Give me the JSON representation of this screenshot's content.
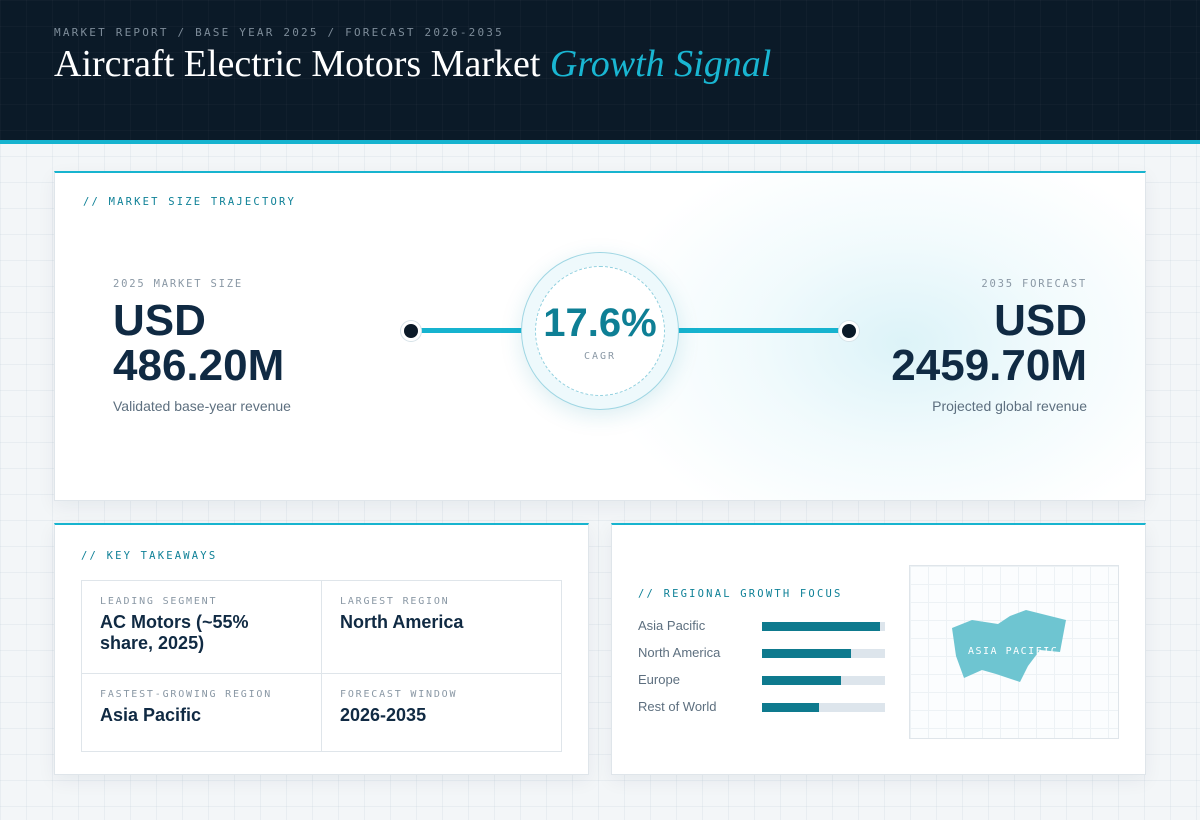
{
  "header": {
    "breadcrumb": "MARKET REPORT / BASE YEAR 2025 / FORECAST 2026-2035",
    "title_main": "Aircraft Electric Motors Market",
    "title_accent": "Growth Signal"
  },
  "trajectory": {
    "section_label": "// MARKET SIZE TRAJECTORY",
    "start": {
      "label": "2025 MARKET SIZE",
      "currency": "USD",
      "value": "486.20M",
      "caption": "Validated base-year revenue"
    },
    "end": {
      "label": "2035 FORECAST",
      "currency": "USD",
      "value": "2459.70M",
      "caption": "Projected global revenue"
    },
    "cagr": {
      "value": "17.6%",
      "label": "CAGR"
    }
  },
  "takeaways": {
    "section_label": "// KEY TAKEAWAYS",
    "items": [
      {
        "label": "LEADING SEGMENT",
        "value": "AC Motors (~55% share, 2025)"
      },
      {
        "label": "LARGEST REGION",
        "value": "North America"
      },
      {
        "label": "FASTEST-GROWING REGION",
        "value": "Asia Pacific"
      },
      {
        "label": "FORECAST WINDOW",
        "value": "2026-2035"
      }
    ]
  },
  "regional": {
    "section_label": "// REGIONAL GROWTH FOCUS",
    "bars": [
      {
        "name": "Asia Pacific",
        "level": 0.96
      },
      {
        "name": "North America",
        "level": 0.72
      },
      {
        "name": "Europe",
        "level": 0.64
      },
      {
        "name": "Rest of World",
        "level": 0.46
      }
    ],
    "map_label": "ASIA PACIFIC",
    "colors": {
      "bar_fill": "#0e7a8e",
      "bar_track": "#dde5ec",
      "map_shape": "#6ec5d1"
    }
  }
}
